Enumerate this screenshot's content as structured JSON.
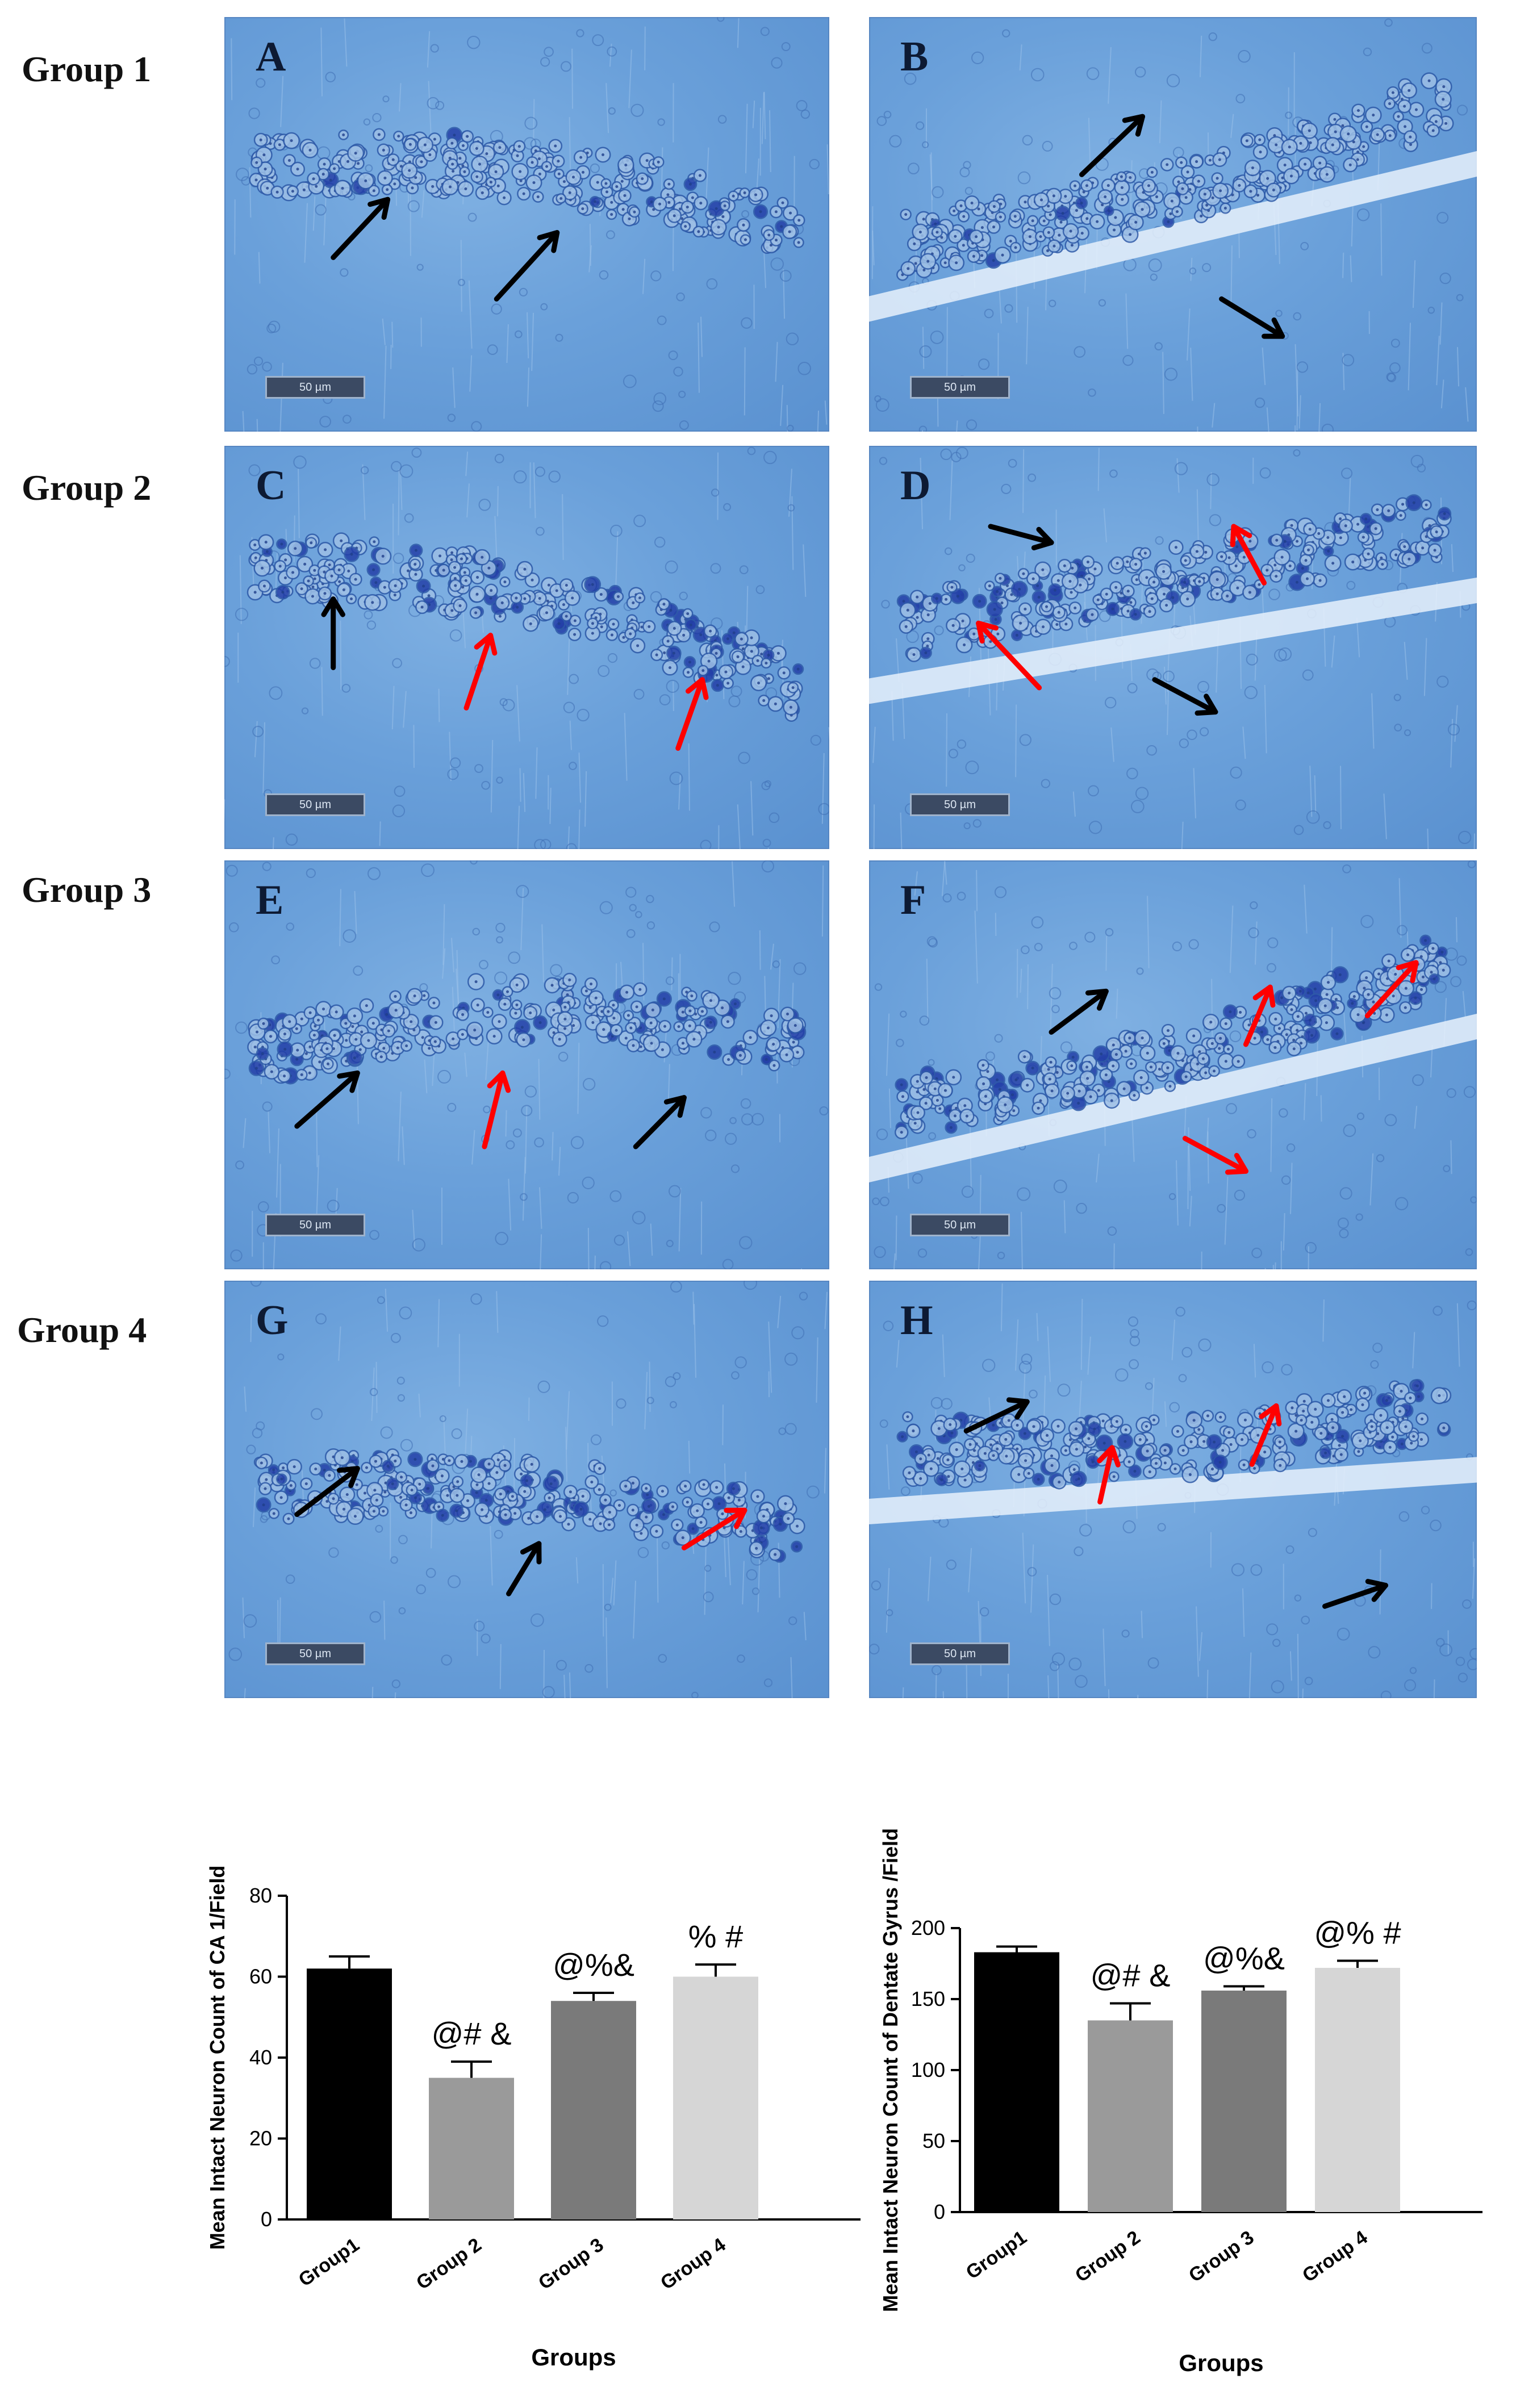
{
  "groups": [
    "Group 1",
    "Group 2",
    "Group 3",
    "Group 4"
  ],
  "panels": [
    {
      "letter": "A",
      "scale": "50 µm"
    },
    {
      "letter": "B",
      "scale": "50 µm"
    },
    {
      "letter": "C",
      "scale": "50 µm"
    },
    {
      "letter": "D",
      "scale": "50 µm"
    },
    {
      "letter": "E",
      "scale": "50 µm"
    },
    {
      "letter": "F",
      "scale": "50 µm"
    },
    {
      "letter": "G",
      "scale": "50 µm"
    },
    {
      "letter": "H",
      "scale": "50 µm"
    }
  ],
  "colors": {
    "normal_arrow": "#000000",
    "damaged_arrow": "#ff0000"
  },
  "chart_data": [
    {
      "type": "bar",
      "categories": [
        "Group1",
        "Group 2",
        "Group 3",
        "Group 4"
      ],
      "values": [
        62,
        35,
        54,
        60
      ],
      "errors": [
        3,
        4,
        2,
        3
      ],
      "annotations": [
        "",
        "@# &",
        "@%&",
        "% #"
      ],
      "colors": [
        "#000000",
        "#9a9a9a",
        "#7a7a7a",
        "#d6d6d6"
      ],
      "xlabel": "Groups",
      "ylabel": "Mean Intact Neuron Count of CA 1/Field",
      "ylim": [
        0,
        80
      ],
      "yticks": [
        0,
        20,
        40,
        60,
        80
      ],
      "grid": false
    },
    {
      "type": "bar",
      "categories": [
        "Group1",
        "Group 2",
        "Group 3",
        "Group 4"
      ],
      "values": [
        183,
        135,
        156,
        172
      ],
      "errors": [
        4,
        12,
        3,
        5
      ],
      "annotations": [
        "",
        "@# &",
        "@%&",
        "@% #"
      ],
      "colors": [
        "#000000",
        "#9a9a9a",
        "#7a7a7a",
        "#d6d6d6"
      ],
      "xlabel": "Groups",
      "ylabel": "Mean Intact Neuron Count of Dentate Gyrus /Field",
      "ylim": [
        0,
        200
      ],
      "yticks": [
        0,
        50,
        100,
        150,
        200
      ],
      "grid": false
    }
  ]
}
